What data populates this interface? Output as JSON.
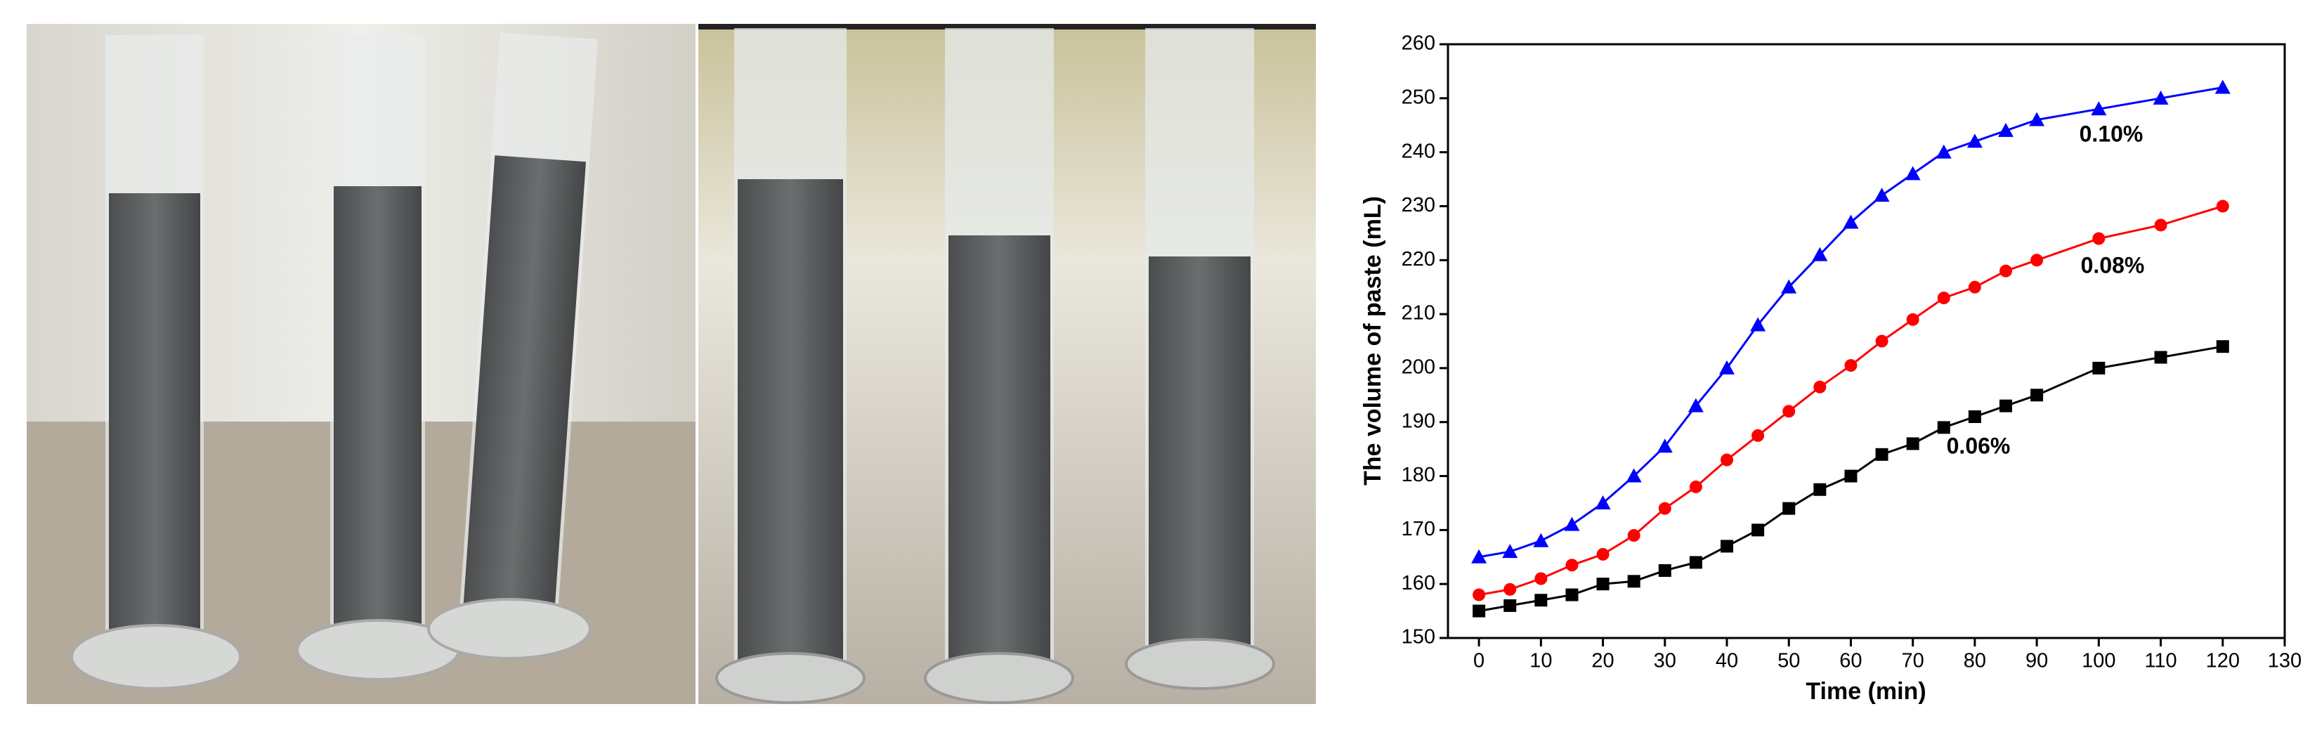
{
  "chart_data": {
    "type": "line",
    "x_label": "Time (min)",
    "y_label": "The volume of paste (mL)",
    "x": [
      0,
      5,
      10,
      15,
      20,
      25,
      30,
      35,
      40,
      45,
      50,
      55,
      60,
      65,
      70,
      75,
      80,
      85,
      90,
      100,
      110,
      120
    ],
    "series": [
      {
        "name": "0.10%",
        "color": "#0000ff",
        "marker": "triangle",
        "values": [
          165,
          166,
          168,
          171,
          175,
          180,
          185.5,
          193,
          200,
          208,
          215,
          221,
          227,
          232,
          236,
          240,
          242,
          244,
          246,
          248,
          250,
          252
        ]
      },
      {
        "name": "0.08%",
        "color": "#ff0000",
        "marker": "circle",
        "values": [
          158,
          159,
          161,
          163.5,
          165.5,
          169,
          174,
          178,
          183,
          187.5,
          192,
          196.5,
          200.5,
          205,
          209,
          213,
          215,
          218,
          220,
          224,
          226.5,
          230
        ]
      },
      {
        "name": "0.06%",
        "color": "#000000",
        "marker": "square",
        "values": [
          155,
          156,
          157,
          158,
          160,
          160.5,
          162.5,
          164,
          167,
          170,
          174,
          177.5,
          180,
          184,
          186,
          189,
          191,
          193,
          195,
          200,
          202,
          204
        ]
      }
    ],
    "xlim": [
      -5,
      130
    ],
    "xticks": [
      0,
      10,
      20,
      30,
      40,
      50,
      60,
      70,
      80,
      90,
      100,
      110,
      120,
      130
    ],
    "ylim": [
      150,
      260
    ],
    "yticks": [
      150,
      160,
      170,
      180,
      190,
      200,
      210,
      220,
      230,
      240,
      250,
      260
    ]
  }
}
